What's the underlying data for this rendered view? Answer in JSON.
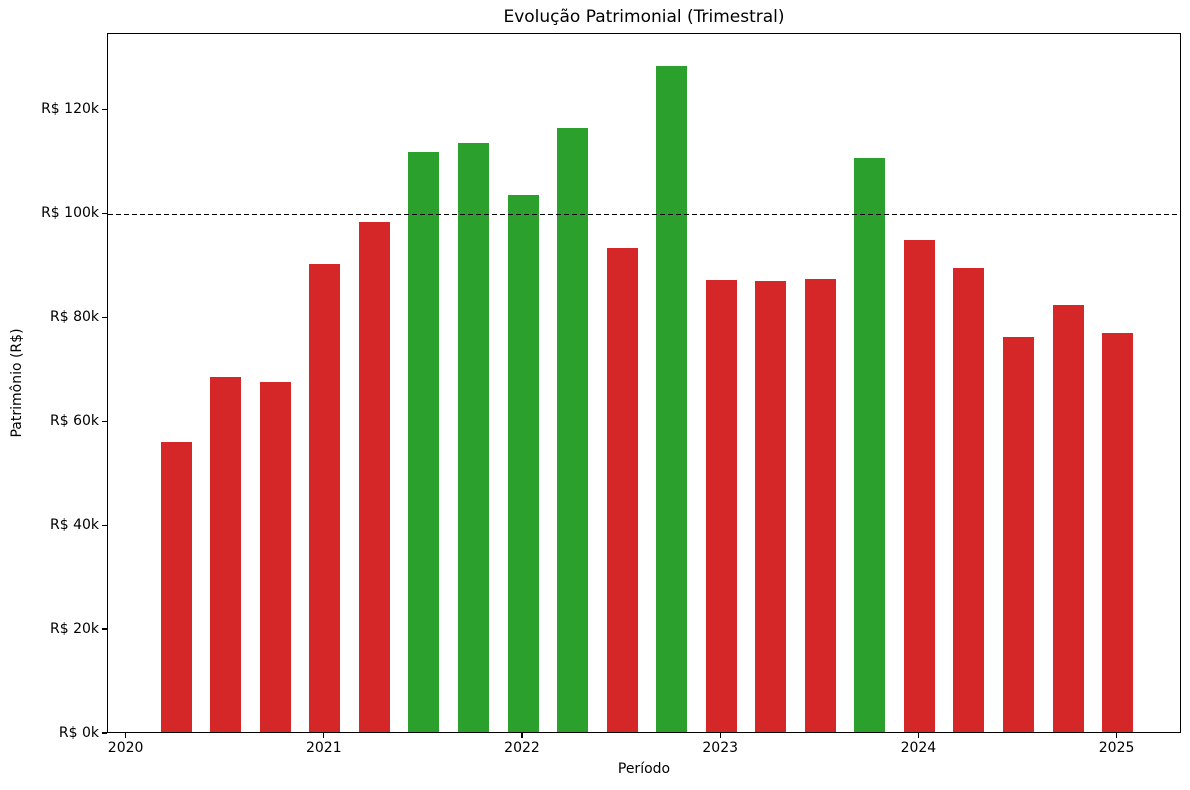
{
  "chart_data": {
    "type": "bar",
    "title": "Evolução Patrimonial (Trimestral)",
    "xlabel": "Período",
    "ylabel": "Patrimônio (R$)",
    "categories": [
      "2020Q1",
      "2020Q2",
      "2020Q3",
      "2020Q4",
      "2021Q1",
      "2021Q2",
      "2021Q3",
      "2021Q4",
      "2022Q1",
      "2022Q2",
      "2022Q3",
      "2022Q4",
      "2023Q1",
      "2023Q2",
      "2023Q3",
      "2023Q4",
      "2024Q1",
      "2024Q2",
      "2024Q3",
      "2024Q4"
    ],
    "values": [
      55800,
      68400,
      67300,
      90000,
      98200,
      111600,
      113300,
      103400,
      116300,
      93200,
      128200,
      87000,
      86700,
      87100,
      110500,
      94700,
      89300,
      76000,
      82200,
      76700
    ],
    "value_unit": "R$",
    "color_rule": {
      "threshold": 100000,
      "above_color": "#2ca02c",
      "below_color": "#d62728"
    },
    "reference_line": {
      "value": 100000,
      "color": "#000000",
      "style": "dashed"
    },
    "ylim": [
      0,
      134700
    ],
    "xlim_years": [
      2019.906,
      2025.325
    ],
    "yticks": [
      {
        "value": 0,
        "label": "R$ 0k"
      },
      {
        "value": 20000,
        "label": "R$ 20k"
      },
      {
        "value": 40000,
        "label": "R$ 40k"
      },
      {
        "value": 60000,
        "label": "R$ 60k"
      },
      {
        "value": 80000,
        "label": "R$ 80k"
      },
      {
        "value": 100000,
        "label": "R$ 100k"
      },
      {
        "value": 120000,
        "label": "R$ 120k"
      }
    ],
    "xticks": [
      {
        "value": 2020,
        "label": "2020"
      },
      {
        "value": 2021,
        "label": "2021"
      },
      {
        "value": 2022,
        "label": "2022"
      },
      {
        "value": 2023,
        "label": "2023"
      },
      {
        "value": 2024,
        "label": "2024"
      },
      {
        "value": 2025,
        "label": "2025"
      }
    ],
    "grid": false,
    "legend": null
  }
}
